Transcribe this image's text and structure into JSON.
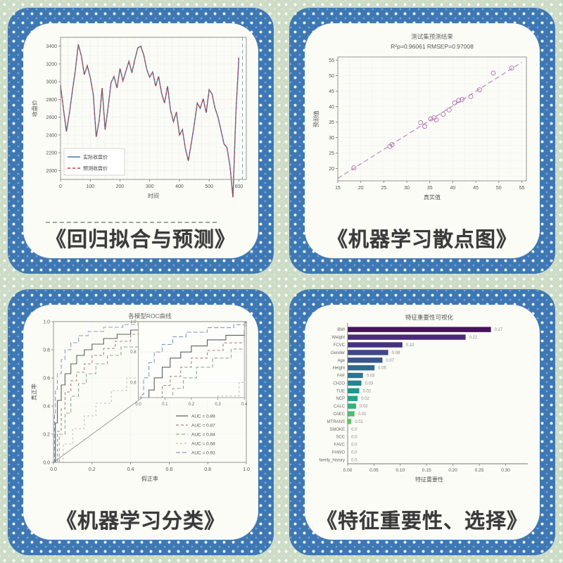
{
  "page": {
    "background_color": "#cddcc7",
    "frame_color": "#3e78b4",
    "card_color": "#fcfcf7",
    "caption_color": "#3a3a3a"
  },
  "cards": [
    {
      "caption": "《回归拟合与预测》"
    },
    {
      "caption": "《机器学习散点图》"
    },
    {
      "caption": "《机器学习分类》"
    },
    {
      "caption": "《特征重要性、选择》"
    }
  ],
  "chart_data": [
    {
      "type": "line",
      "title": "",
      "xlabel": "时间",
      "ylabel": "收盘价",
      "xlim": [
        0,
        625
      ],
      "ylim": [
        1900,
        3500
      ],
      "xticks": [
        0,
        100,
        200,
        300,
        400,
        500,
        600
      ],
      "yticks": [
        2000,
        2200,
        2400,
        2600,
        2800,
        3000,
        3200,
        3400
      ],
      "x_start": 0,
      "x_step": 10,
      "forecast_boundary_x": 612,
      "grid": true,
      "legend_position": "lower-left",
      "series": [
        {
          "name": "实际收盘价",
          "color": "#4878a8",
          "dash": ""
        },
        {
          "name": "预测收盘价",
          "color": "#c23b3b",
          "dash": "4 3"
        }
      ],
      "values": [
        2960,
        2690,
        2440,
        2650,
        2900,
        3130,
        3420,
        3290,
        3080,
        3180,
        3050,
        2860,
        2380,
        2560,
        2930,
        2460,
        2710,
        2990,
        3060,
        2930,
        3150,
        3010,
        3120,
        3230,
        3100,
        3250,
        3380,
        3400,
        3300,
        3140,
        3050,
        3110,
        2950,
        3060,
        2870,
        2760,
        2950,
        2680,
        2550,
        2660,
        2400,
        2460,
        2250,
        2110,
        2310,
        2520,
        2760,
        2700,
        2810,
        2650,
        2910,
        2860,
        2700,
        2600,
        2450,
        2300,
        2260,
        2050,
        1700,
        2650,
        3270
      ],
      "note": "blue actual line and red dashed predicted line overlap almost exactly"
    },
    {
      "type": "scatter",
      "title": "测试集预测结果",
      "subtitle": "R²p=0.96061  RMSEP=0.97008",
      "xlabel": "真实值",
      "ylabel": "预测值",
      "xlim": [
        15,
        56
      ],
      "ylim": [
        16,
        56
      ],
      "xticks": [
        15,
        20,
        25,
        30,
        35,
        40,
        45,
        50,
        55
      ],
      "yticks": [
        20,
        25,
        30,
        35,
        40,
        45,
        50,
        55
      ],
      "grid": true,
      "point_color": "#b77ab8",
      "line_color": "#c490c4",
      "fit_line": [
        [
          15,
          16.8
        ],
        [
          55,
          54.3
        ]
      ],
      "points": [
        [
          18.5,
          20.2
        ],
        [
          26.3,
          27.1
        ],
        [
          26.8,
          27.7
        ],
        [
          33.0,
          34.8
        ],
        [
          33.9,
          33.6
        ],
        [
          35.2,
          36.0
        ],
        [
          35.9,
          36.4
        ],
        [
          36.4,
          35.7
        ],
        [
          37.9,
          37.5
        ],
        [
          39.2,
          38.9
        ],
        [
          40.4,
          41.2
        ],
        [
          41.3,
          42.0
        ],
        [
          42.0,
          42.3
        ],
        [
          43.9,
          43.2
        ],
        [
          45.8,
          45.4
        ],
        [
          48.8,
          50.8
        ],
        [
          52.8,
          52.4
        ]
      ]
    },
    {
      "type": "roc",
      "title": "各模型ROC曲线",
      "xlabel": "假正率",
      "ylabel": "真正率",
      "xlim": [
        0,
        1
      ],
      "ylim": [
        0,
        1
      ],
      "xticks": [
        0,
        0.2,
        0.4,
        0.6,
        0.8,
        1.0
      ],
      "yticks": [
        0,
        0.2,
        0.4,
        0.6,
        0.8,
        1.0
      ],
      "grid": true,
      "diagonal_color": "#9a9a9a",
      "legend_position": "lower-right",
      "inset": {
        "xlim": [
          0,
          0.4
        ],
        "ylim": [
          0.5,
          1.0
        ],
        "xticks": [
          0,
          0.1,
          0.2,
          0.3,
          0.4
        ],
        "yticks": [
          0.6,
          0.8,
          1.0
        ],
        "rect": [
          0.44,
          0.46,
          0.99,
          1.0
        ]
      },
      "series": [
        {
          "name": "AUC = 0.89",
          "color": "#5f5f5f",
          "dash": "",
          "points": [
            [
              0,
              0
            ],
            [
              0.01,
              0.28
            ],
            [
              0.02,
              0.44
            ],
            [
              0.04,
              0.55
            ],
            [
              0.06,
              0.63
            ],
            [
              0.09,
              0.7
            ],
            [
              0.12,
              0.76
            ],
            [
              0.16,
              0.8
            ],
            [
              0.2,
              0.84
            ],
            [
              0.26,
              0.88
            ],
            [
              0.33,
              0.91
            ],
            [
              0.4,
              0.94
            ],
            [
              0.5,
              0.96
            ],
            [
              0.62,
              0.98
            ],
            [
              0.8,
              0.99
            ],
            [
              1,
              1
            ]
          ]
        },
        {
          "name": "AUC = 0.87",
          "color": "#b4807c",
          "dash": "4 3",
          "points": [
            [
              0,
              0
            ],
            [
              0.02,
              0.22
            ],
            [
              0.04,
              0.38
            ],
            [
              0.06,
              0.5
            ],
            [
              0.09,
              0.58
            ],
            [
              0.12,
              0.64
            ],
            [
              0.16,
              0.7
            ],
            [
              0.2,
              0.76
            ],
            [
              0.26,
              0.81
            ],
            [
              0.32,
              0.86
            ],
            [
              0.4,
              0.91
            ],
            [
              0.5,
              0.95
            ],
            [
              0.65,
              0.98
            ],
            [
              1,
              1
            ]
          ]
        },
        {
          "name": "AUC = 0.84",
          "color": "#8fae8b",
          "dash": "5 3",
          "points": [
            [
              0,
              0
            ],
            [
              0.03,
              0.2
            ],
            [
              0.06,
              0.35
            ],
            [
              0.09,
              0.47
            ],
            [
              0.13,
              0.56
            ],
            [
              0.17,
              0.63
            ],
            [
              0.22,
              0.7
            ],
            [
              0.28,
              0.76
            ],
            [
              0.35,
              0.82
            ],
            [
              0.44,
              0.88
            ],
            [
              0.55,
              0.93
            ],
            [
              0.7,
              0.97
            ],
            [
              1,
              1
            ]
          ]
        },
        {
          "name": "AUC = 0.68",
          "color": "#c2c2c2",
          "dash": "3 3",
          "points": [
            [
              0,
              0
            ],
            [
              0.05,
              0.13
            ],
            [
              0.1,
              0.24
            ],
            [
              0.16,
              0.33
            ],
            [
              0.22,
              0.42
            ],
            [
              0.3,
              0.51
            ],
            [
              0.38,
              0.6
            ],
            [
              0.47,
              0.68
            ],
            [
              0.56,
              0.75
            ],
            [
              0.66,
              0.82
            ],
            [
              0.8,
              0.9
            ],
            [
              1,
              1
            ]
          ]
        },
        {
          "name": "AUC = 0.93",
          "color": "#8b9cc0",
          "dash": "6 3",
          "points": [
            [
              0,
              0
            ],
            [
              0.005,
              0.35
            ],
            [
              0.01,
              0.52
            ],
            [
              0.02,
              0.63
            ],
            [
              0.04,
              0.73
            ],
            [
              0.06,
              0.8
            ],
            [
              0.09,
              0.85
            ],
            [
              0.13,
              0.9
            ],
            [
              0.18,
              0.93
            ],
            [
              0.26,
              0.96
            ],
            [
              0.36,
              0.98
            ],
            [
              0.55,
              0.99
            ],
            [
              1,
              1
            ]
          ]
        }
      ]
    },
    {
      "type": "bar",
      "orientation": "horizontal",
      "title": "特征重要性可视化",
      "xlabel": "特征重要性",
      "xlim": [
        0,
        0.31
      ],
      "xticks": [
        0,
        0.05,
        0.1,
        0.15,
        0.2,
        0.25,
        0.3
      ],
      "categories": [
        "BMI",
        "Weight",
        "FCVC",
        "Gender",
        "Age",
        "Height",
        "FAF",
        "CH2O",
        "TUE",
        "NCP",
        "CALC",
        "CAEC",
        "MTRANS",
        "SMOKE",
        "SCC",
        "FAVC",
        "FHWO",
        "family_history"
      ],
      "values": [
        0.272,
        0.224,
        0.104,
        0.077,
        0.066,
        0.051,
        0.029,
        0.026,
        0.022,
        0.019,
        0.016,
        0.013,
        0.007,
        0,
        0,
        0,
        0,
        0
      ],
      "value_labels": [
        "0.27",
        "0.22",
        "0.10",
        "0.08",
        "0.07",
        "0.05",
        "0.03",
        "0.03",
        "0.02",
        "0.02",
        "0.02",
        "0.01",
        "0.01",
        "0.0",
        "0.0",
        "0.0",
        "0.0",
        "0.0"
      ],
      "colors": [
        "#46135c",
        "#4b2a77",
        "#45327e",
        "#3f4788",
        "#38568b",
        "#31688e",
        "#2a788e",
        "#24878e",
        "#1f978b",
        "#21a585",
        "#2fb47c",
        "#46c06f",
        "#5ec962",
        "#7ad151",
        "#9bd93c",
        "#c0df25",
        "#dfe318",
        "#fde725"
      ]
    }
  ]
}
